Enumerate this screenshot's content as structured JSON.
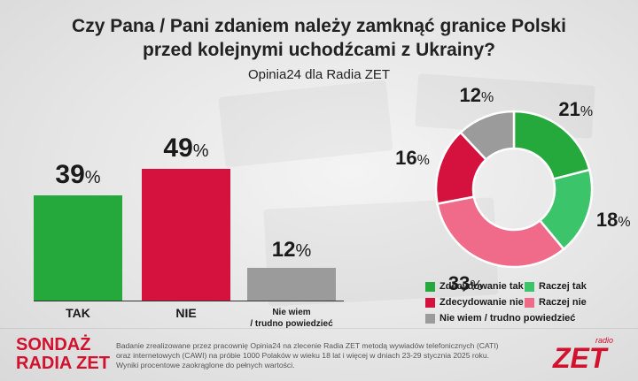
{
  "title_line1": "Czy Pana / Pani zdaniem należy zamknąć granice Polski",
  "title_line2": "przed kolejnymi uchodźcami z Ukrainy?",
  "subtitle": "Opinia24 dla Radia ZET",
  "colors": {
    "green_dark": "#25a83c",
    "green_light": "#3cc46a",
    "red_dark": "#d5123d",
    "red_light": "#f06a8a",
    "gray": "#9b9b9b",
    "brand_red": "#d1112d"
  },
  "chart_data": [
    {
      "type": "bar",
      "categories": [
        "TAK",
        "NIE",
        "Nie wiem / trudno powiedzieć"
      ],
      "values": [
        39,
        49,
        12
      ],
      "value_labels": [
        "39",
        "49",
        "12"
      ],
      "unit": "%",
      "category_lines": [
        [
          "TAK"
        ],
        [
          "NIE"
        ],
        [
          "Nie wiem",
          "/ trudno powiedzieć"
        ]
      ],
      "colors": [
        "#25a83c",
        "#d5123d",
        "#9b9b9b"
      ]
    },
    {
      "type": "pie",
      "style": "donut",
      "labels": [
        "Zdecydowanie tak",
        "Raczej tak",
        "Raczej nie",
        "Zdecydowanie nie",
        "Nie wiem / trudno powiedzieć"
      ],
      "values": [
        21,
        18,
        33,
        16,
        12
      ],
      "value_labels": [
        "21",
        "18",
        "33",
        "16",
        "12"
      ],
      "unit": "%",
      "colors": [
        "#25a83c",
        "#3cc46a",
        "#f06a8a",
        "#d5123d",
        "#9b9b9b"
      ],
      "legend": [
        "Zdecydowanie tak",
        "Raczej tak",
        "Zdecydowanie nie",
        "Raczej nie",
        "Nie wiem / trudno powiedzieć"
      ],
      "legend_colors": [
        "#25a83c",
        "#3cc46a",
        "#d5123d",
        "#f06a8a",
        "#9b9b9b"
      ],
      "legend_placement": "bottom-right"
    }
  ],
  "footer": {
    "brand_line1": "SONDAŻ",
    "brand_line2": "RADIA ZET",
    "note_line1": "Badanie zrealizowane przez pracownię Opinia24 na zlecenie Radia ZET metodą wywiadów telefonicznych (CATI)",
    "note_line2": "oraz internetowych (CAWI) na próbie 1000 Polaków w wieku 18 lat i więcej w dniach 23-29 stycznia 2025 roku.",
    "note_line3": "Wyniki procentowe zaokrąglone do pełnych wartości.",
    "logo_small": "radio",
    "logo_big": "ZET"
  }
}
